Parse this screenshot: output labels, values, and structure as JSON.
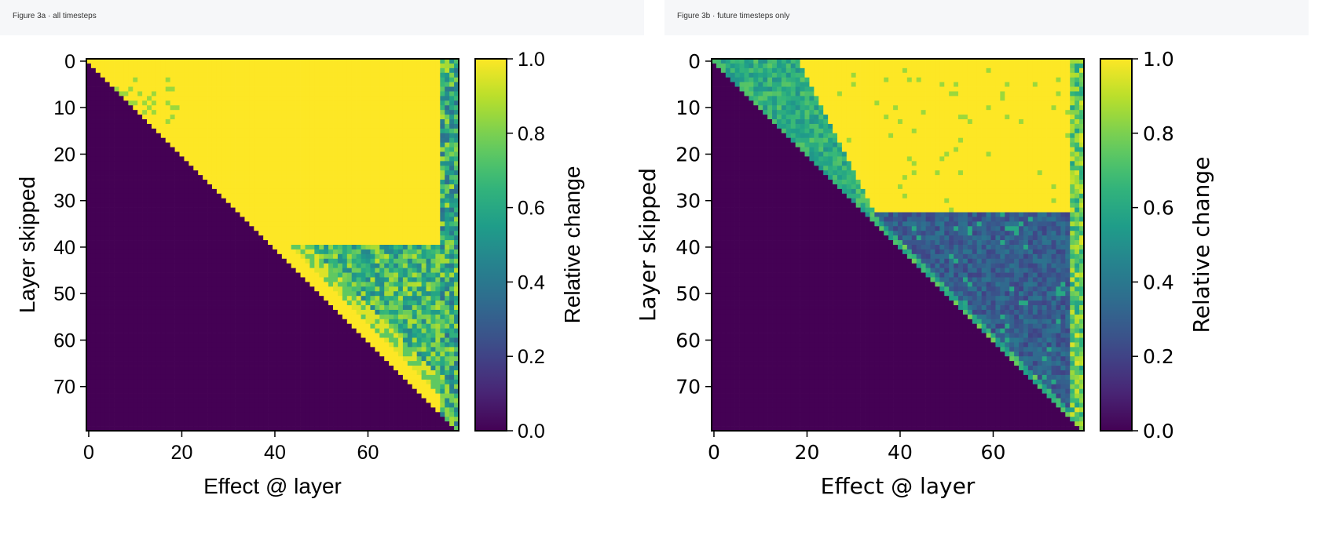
{
  "chart_data": [
    {
      "type": "heatmap",
      "caption": "Figure 3a · all timesteps",
      "xlabel": "Effect @ layer",
      "ylabel": "Layer skipped",
      "x_ticks": [
        "0",
        "20",
        "40",
        "60"
      ],
      "y_ticks": [
        "0",
        "10",
        "20",
        "30",
        "40",
        "50",
        "60",
        "70"
      ],
      "x_range": [
        0,
        79
      ],
      "y_range": [
        0,
        79
      ],
      "colorbar": {
        "label": "Relative change",
        "min": 0.0,
        "max": 1.0,
        "ticks": [
          "0.0",
          "0.2",
          "0.4",
          "0.6",
          "0.8",
          "1.0"
        ],
        "colormap": "viridis"
      },
      "grid": false,
      "description_values": "Cells below the diagonal (effect layer < skipped layer) = 0.0; upper-left region of the upper triangle (rows 0–39) ≈ 1.0; rows 40–79 near the diagonal ≈ 0.4–0.9 and ≈ 1.0 close to the diagonal; rightmost columns (≈75–79) ≈ 0.3–0.9"
    },
    {
      "type": "heatmap",
      "caption": "Figure 3b · future timesteps only",
      "xlabel": "Effect @ layer",
      "ylabel": "Layer skipped",
      "x_ticks": [
        "0",
        "20",
        "40",
        "60"
      ],
      "y_ticks": [
        "0",
        "10",
        "20",
        "30",
        "40",
        "50",
        "60",
        "70"
      ],
      "x_range": [
        0,
        79
      ],
      "y_range": [
        0,
        79
      ],
      "colorbar": {
        "label": "Relative change",
        "min": 0.0,
        "max": 1.0,
        "ticks": [
          "0.0",
          "0.2",
          "0.4",
          "0.6",
          "0.8",
          "1.0"
        ],
        "colormap": "viridis"
      },
      "grid": false,
      "description_values": "Cells below the diagonal = 0.0; upper region (rows 0–32, columns > ≈18) ≈ 1.0; band near diagonal for rows 0–32 ≈ 0.5–0.7; rows 33–79 mostly ≈ 0.15–0.4 with occasional higher values; rightmost columns ≈ 0.6–0.9"
    }
  ]
}
